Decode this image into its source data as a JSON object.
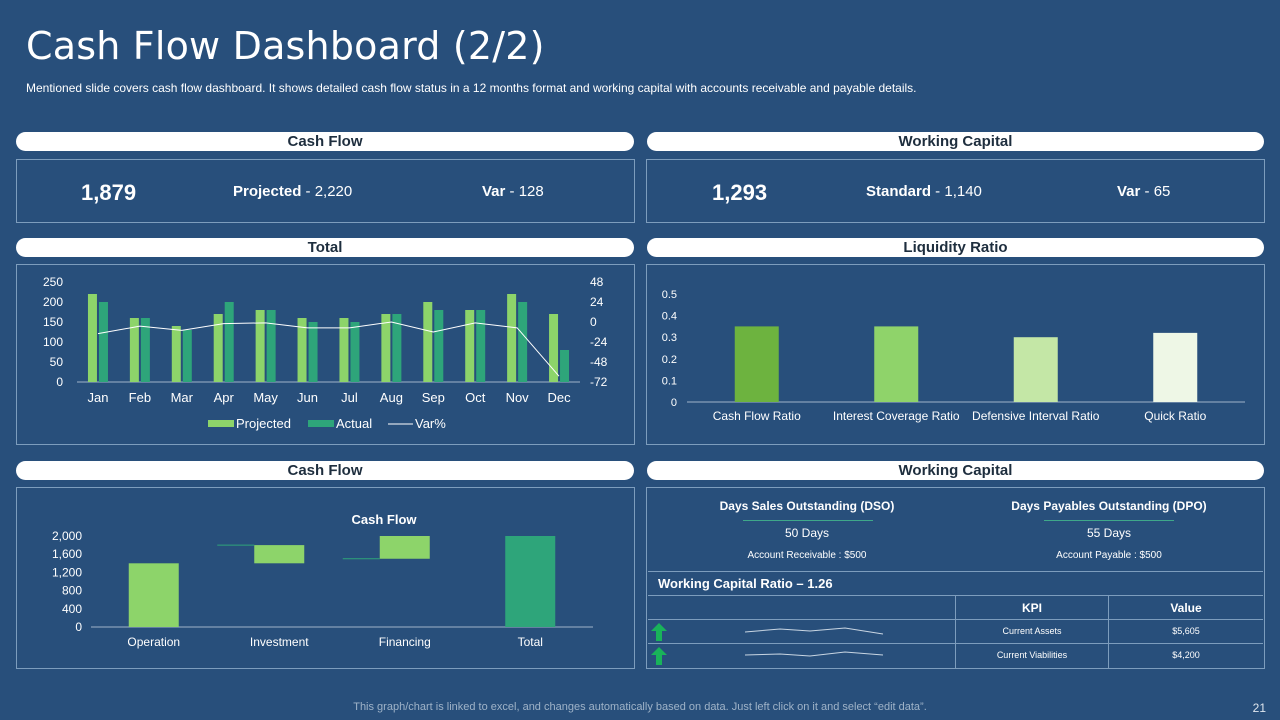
{
  "header": {
    "title": "Cash Flow Dashboard (2/2)",
    "subtitle": "Mentioned slide covers cash flow dashboard. It shows detailed cash flow status in a 12 months format and working capital with accounts receivable  and payable details."
  },
  "panels": {
    "cash_flow_top": "Cash Flow",
    "working_capital_top": "Working Capital",
    "total": "Total",
    "liquidity_ratio": "Liquidity Ratio",
    "cash_flow_bottom": "Cash Flow",
    "working_capital_bottom": "Working Capital"
  },
  "cash_flow_kpi": {
    "value": "1,879",
    "projected_label": "Projected",
    "projected_value": " - 2,220",
    "var_label": "Var",
    "var_value": " - 128"
  },
  "working_capital_kpi": {
    "value": "1,293",
    "standard_label": "Standard",
    "standard_value": " - 1,140",
    "var_label": "Var",
    "var_value": " - 65"
  },
  "working_capital_details": {
    "dso_label": "Days Sales Outstanding (DSO)",
    "dso_value": "50 Days",
    "dso_sub": "Account Receivable : $500",
    "dpo_label": "Days Payables Outstanding (DPO)",
    "dpo_value": "55 Days",
    "dpo_sub": "Account Payable : $500",
    "ratio_title": "Working Capital Ratio – 1.26",
    "table_headers": [
      "KPI",
      "Value"
    ],
    "rows": [
      {
        "kpi": "Current Assets",
        "value": "$5,605",
        "trend": "up-arrow-icon"
      },
      {
        "kpi": "Current Viabilities",
        "value": "$4,200",
        "trend": "up-arrow-icon"
      }
    ]
  },
  "footer": {
    "note": "This graph/chart is linked to excel,  and changes automatically based on data. Just left click on it and select “edit data”.",
    "page": "21"
  },
  "colors": {
    "background": "#284f7b",
    "projected": "#8dd46a",
    "actual": "#2ea57a",
    "var_line": "#ffffff",
    "liquidity": [
      "#6db33f",
      "#8fd36a",
      "#c4e7a6",
      "#eef7e6"
    ],
    "waterfall": "#8dd46a",
    "waterfall_total": "#2ea57a"
  },
  "chart_data": [
    {
      "type": "bar",
      "categories": [
        "Jan",
        "Feb",
        "Mar",
        "Apr",
        "May",
        "Jun",
        "Jul",
        "Aug",
        "Sep",
        "Oct",
        "Nov",
        "Dec"
      ],
      "series": [
        {
          "name": "Projected",
          "values": [
            220,
            160,
            140,
            170,
            180,
            160,
            160,
            170,
            200,
            180,
            220,
            170
          ]
        },
        {
          "name": "Actual",
          "values": [
            200,
            160,
            130,
            200,
            180,
            150,
            150,
            170,
            180,
            180,
            200,
            80
          ]
        },
        {
          "name": "Var%",
          "type": "line",
          "axis": "right",
          "values": [
            -14,
            -5,
            -10,
            -2,
            -1,
            -7,
            -7,
            0,
            -12,
            -1,
            -7,
            -65
          ]
        }
      ],
      "ylim": [
        0,
        250
      ],
      "yticks": [
        "250",
        "200",
        "150",
        "100",
        "50",
        "0"
      ],
      "y2lim": [
        -72,
        48
      ],
      "y2ticks": [
        "48",
        "24",
        "0",
        "-24",
        "-48",
        "-72"
      ],
      "legend": "bottom"
    },
    {
      "type": "bar",
      "categories": [
        "Cash Flow Ratio",
        "Interest Coverage Ratio",
        "Defensive Interval Ratio",
        "Quick Ratio"
      ],
      "values": [
        0.35,
        0.35,
        0.3,
        0.32
      ],
      "ylim": [
        0,
        0.5
      ],
      "yticks": [
        "0.5",
        "0.4",
        "0.3",
        "0.2",
        "0.1",
        "0"
      ]
    },
    {
      "type": "bar",
      "title": "Cash Flow",
      "categories": [
        "Operation",
        "Investment",
        "Financing",
        "Total"
      ],
      "waterfall": [
        {
          "start": 0,
          "end": 1400
        },
        {
          "start": 1800,
          "end": 1400
        },
        {
          "start": 1500,
          "end": 2000
        },
        {
          "start": 0,
          "end": 2000
        }
      ],
      "ylim": [
        0,
        2000
      ],
      "yticks": [
        "2,000",
        "1,600",
        "1,200",
        "800",
        "400",
        "0"
      ]
    }
  ]
}
